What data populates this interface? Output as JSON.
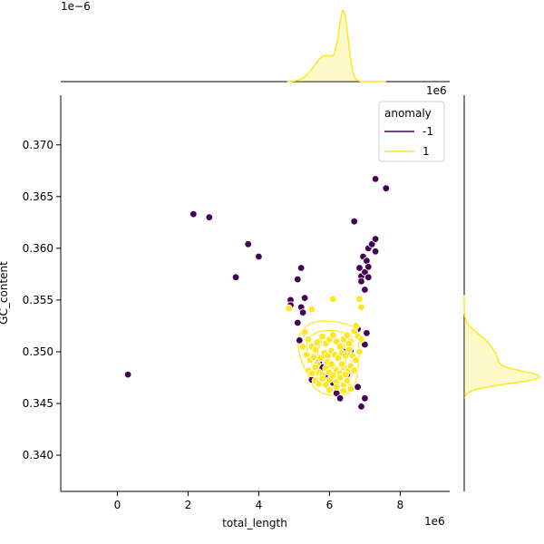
{
  "chart_data": {
    "type": "scatter",
    "xlabel": "total_length",
    "ylabel": "GC_content",
    "x_scale_label": "1e6",
    "top_scale_label": "1e−6",
    "right_scale_label": "1e6",
    "xlim": [
      -1.6,
      9.4
    ],
    "ylim": [
      0.3365,
      0.3748
    ],
    "x_ticks": [
      "0",
      "2",
      "4",
      "6",
      "8"
    ],
    "x_tick_values": [
      0,
      2,
      4,
      6,
      8
    ],
    "y_ticks": [
      "0.340",
      "0.345",
      "0.350",
      "0.355",
      "0.360",
      "0.365",
      "0.370"
    ],
    "y_tick_values": [
      0.34,
      0.345,
      0.35,
      0.355,
      0.36,
      0.365,
      0.37
    ],
    "legend": {
      "title": "anomaly",
      "placement": "top-right",
      "entries": [
        {
          "label": "-1",
          "color": "#440154"
        },
        {
          "label": "1",
          "color": "#fde725"
        }
      ]
    },
    "colors": {
      "anomaly": "#440154",
      "normal": "#fde725"
    },
    "series": [
      {
        "name": "-1",
        "color": "#440154",
        "points": [
          [
            0.3,
            0.3478
          ],
          [
            2.15,
            0.3633
          ],
          [
            2.6,
            0.363
          ],
          [
            3.35,
            0.3572
          ],
          [
            3.7,
            0.3604
          ],
          [
            4.0,
            0.3592
          ],
          [
            4.9,
            0.355
          ],
          [
            4.9,
            0.3545
          ],
          [
            5.1,
            0.357
          ],
          [
            5.2,
            0.3581
          ],
          [
            5.3,
            0.3552
          ],
          [
            5.2,
            0.3543
          ],
          [
            5.25,
            0.3538
          ],
          [
            5.1,
            0.3528
          ],
          [
            5.15,
            0.3511
          ],
          [
            5.5,
            0.3473
          ],
          [
            5.7,
            0.349
          ],
          [
            5.8,
            0.3485
          ],
          [
            5.9,
            0.3476
          ],
          [
            6.1,
            0.347
          ],
          [
            6.2,
            0.346
          ],
          [
            6.3,
            0.3455
          ],
          [
            6.4,
            0.35
          ],
          [
            6.5,
            0.3478
          ],
          [
            6.6,
            0.35
          ],
          [
            6.7,
            0.3626
          ],
          [
            6.8,
            0.3522
          ],
          [
            6.8,
            0.3466
          ],
          [
            6.85,
            0.3581
          ],
          [
            6.9,
            0.3573
          ],
          [
            6.9,
            0.3447
          ],
          [
            6.95,
            0.3592
          ],
          [
            7.0,
            0.3577
          ],
          [
            7.0,
            0.356
          ],
          [
            7.0,
            0.3455
          ],
          [
            7.05,
            0.3588
          ],
          [
            7.1,
            0.3582
          ],
          [
            7.1,
            0.3572
          ],
          [
            7.1,
            0.36
          ],
          [
            7.05,
            0.3518
          ],
          [
            7.0,
            0.3507
          ],
          [
            7.2,
            0.3604
          ],
          [
            7.3,
            0.3609
          ],
          [
            7.3,
            0.3597
          ],
          [
            7.3,
            0.3667
          ],
          [
            7.6,
            0.3658
          ],
          [
            6.9,
            0.3568
          ]
        ]
      },
      {
        "name": "1",
        "color": "#fde725",
        "points": [
          [
            4.85,
            0.3542
          ],
          [
            5.5,
            0.3541
          ],
          [
            6.1,
            0.3551
          ],
          [
            6.85,
            0.3551
          ],
          [
            6.9,
            0.3543
          ],
          [
            5.3,
            0.3519
          ],
          [
            5.4,
            0.3512
          ],
          [
            5.5,
            0.3505
          ],
          [
            5.6,
            0.3502
          ],
          [
            5.7,
            0.351
          ],
          [
            5.8,
            0.3515
          ],
          [
            5.9,
            0.3508
          ],
          [
            6.0,
            0.3512
          ],
          [
            6.1,
            0.3516
          ],
          [
            6.2,
            0.351
          ],
          [
            6.3,
            0.3505
          ],
          [
            6.4,
            0.3512
          ],
          [
            6.5,
            0.3516
          ],
          [
            6.6,
            0.351
          ],
          [
            6.7,
            0.352
          ],
          [
            6.8,
            0.3515
          ],
          [
            6.9,
            0.3512
          ],
          [
            6.75,
            0.3525
          ],
          [
            5.25,
            0.3505
          ],
          [
            5.35,
            0.3497
          ],
          [
            5.45,
            0.3492
          ],
          [
            5.55,
            0.3495
          ],
          [
            5.65,
            0.3488
          ],
          [
            5.75,
            0.3494
          ],
          [
            5.85,
            0.3499
          ],
          [
            5.95,
            0.3496
          ],
          [
            6.05,
            0.3501
          ],
          [
            6.15,
            0.3497
          ],
          [
            6.25,
            0.3494
          ],
          [
            6.35,
            0.3499
          ],
          [
            6.45,
            0.3496
          ],
          [
            6.55,
            0.3502
          ],
          [
            6.65,
            0.3496
          ],
          [
            6.75,
            0.3492
          ],
          [
            5.4,
            0.3482
          ],
          [
            5.5,
            0.3479
          ],
          [
            5.6,
            0.3485
          ],
          [
            5.7,
            0.348
          ],
          [
            5.8,
            0.3478
          ],
          [
            5.9,
            0.3484
          ],
          [
            6.0,
            0.348
          ],
          [
            6.1,
            0.3486
          ],
          [
            6.2,
            0.3482
          ],
          [
            6.3,
            0.3479
          ],
          [
            6.4,
            0.3485
          ],
          [
            6.5,
            0.3481
          ],
          [
            6.6,
            0.3486
          ],
          [
            6.7,
            0.3482
          ],
          [
            5.6,
            0.3472
          ],
          [
            5.7,
            0.3469
          ],
          [
            5.8,
            0.3474
          ],
          [
            5.9,
            0.3468
          ],
          [
            6.0,
            0.3473
          ],
          [
            6.1,
            0.3477
          ],
          [
            6.2,
            0.3471
          ],
          [
            6.3,
            0.3475
          ],
          [
            6.4,
            0.3468
          ],
          [
            6.5,
            0.3472
          ],
          [
            6.6,
            0.3466
          ],
          [
            6.0,
            0.3463
          ],
          [
            6.2,
            0.3466
          ],
          [
            6.4,
            0.3462
          ],
          [
            6.6,
            0.3464
          ],
          [
            5.95,
            0.349
          ],
          [
            6.35,
            0.3488
          ],
          [
            6.55,
            0.3508
          ],
          [
            5.65,
            0.3509
          ],
          [
            6.05,
            0.3488
          ],
          [
            6.45,
            0.3478
          ],
          [
            6.85,
            0.35
          ]
        ]
      }
    ],
    "marginal_top": {
      "type": "kde",
      "peak": 6.4,
      "secondary": 5.9,
      "color": "#fde725"
    },
    "marginal_right": {
      "type": "kde",
      "peak": 0.3475,
      "color": "#fde725"
    }
  }
}
